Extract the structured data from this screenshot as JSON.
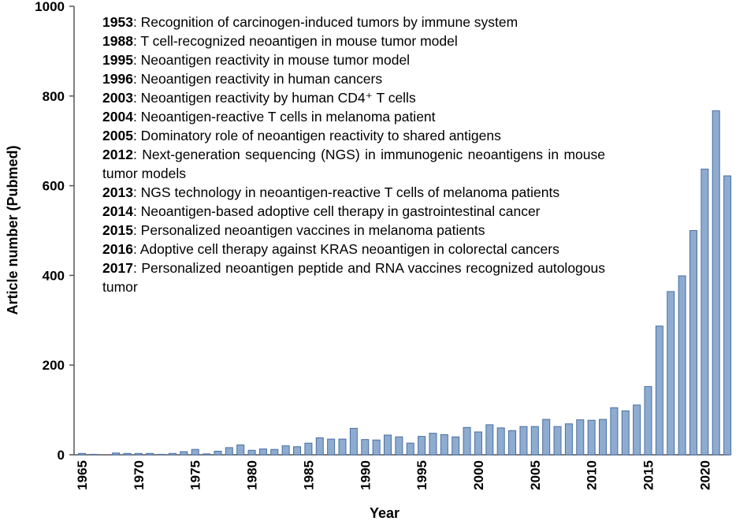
{
  "chart_data": {
    "type": "bar",
    "xlabel": "Year",
    "ylabel": "Article number (Pubmed)",
    "ylim": [
      0,
      1000
    ],
    "yticks": [
      0,
      200,
      400,
      600,
      800,
      1000
    ],
    "xticks": [
      1965,
      1970,
      1975,
      1980,
      1985,
      1990,
      1995,
      2000,
      2005,
      2010,
      2015,
      2020
    ],
    "bar_color": "#8eabd0",
    "bar_edge_color": "#4a6fa0",
    "x": [
      1965,
      1966,
      1967,
      1968,
      1969,
      1970,
      1971,
      1972,
      1973,
      1974,
      1975,
      1976,
      1977,
      1978,
      1979,
      1980,
      1981,
      1982,
      1983,
      1984,
      1985,
      1986,
      1987,
      1988,
      1989,
      1990,
      1991,
      1992,
      1993,
      1994,
      1995,
      1996,
      1997,
      1998,
      1999,
      2000,
      2001,
      2002,
      2003,
      2004,
      2005,
      2006,
      2007,
      2008,
      2009,
      2010,
      2011,
      2012,
      2013,
      2014,
      2015,
      2016,
      2017,
      2018,
      2019,
      2020,
      2021,
      2022
    ],
    "values": [
      3,
      1,
      0,
      4,
      3,
      3,
      3,
      1,
      3,
      7,
      12,
      2,
      8,
      16,
      22,
      10,
      13,
      12,
      20,
      18,
      26,
      38,
      35,
      35,
      59,
      34,
      33,
      44,
      40,
      26,
      41,
      48,
      45,
      40,
      61,
      51,
      67,
      60,
      54,
      63,
      63,
      79,
      63,
      69,
      78,
      77,
      79,
      105,
      98,
      111,
      152,
      287,
      364,
      399,
      500,
      637,
      767,
      622
    ],
    "annotations": [
      {
        "year": "1953",
        "text": ": Recognition of carcinogen-induced tumors by immune system"
      },
      {
        "year": "1988",
        "text": ": T cell-recognized neoantigen in mouse tumor model"
      },
      {
        "year": "1995",
        "text": ": Neoantigen reactivity in mouse tumor model"
      },
      {
        "year": "1996",
        "text": ": Neoantigen reactivity in human cancers"
      },
      {
        "year": "2003",
        "text": ": Neoantigen reactivity by human CD4⁺ T cells"
      },
      {
        "year": "2004",
        "text": ": Neoantigen-reactive T cells in melanoma patient"
      },
      {
        "year": "2005",
        "text": ": Dominatory role of neoantigen reactivity to shared antigens"
      },
      {
        "year": "2012",
        "text": ": Next-generation sequencing (NGS) in immunogenic neoantigens in mouse tumor models"
      },
      {
        "year": "2013",
        "text": ": NGS technology in neoantigen-reactive T cells of melanoma patients"
      },
      {
        "year": "2014",
        "text": ": Neoantigen-based adoptive cell therapy in gastrointestinal cancer"
      },
      {
        "year": "2015",
        "text": ": Personalized neoantigen vaccines in melanoma patients"
      },
      {
        "year": "2016",
        "text": ": Adoptive cell therapy against KRAS neoantigen in colorectal cancers"
      },
      {
        "year": "2017",
        "text": ": Personalized neoantigen peptide and RNA vaccines recognized autologous tumor"
      }
    ]
  }
}
